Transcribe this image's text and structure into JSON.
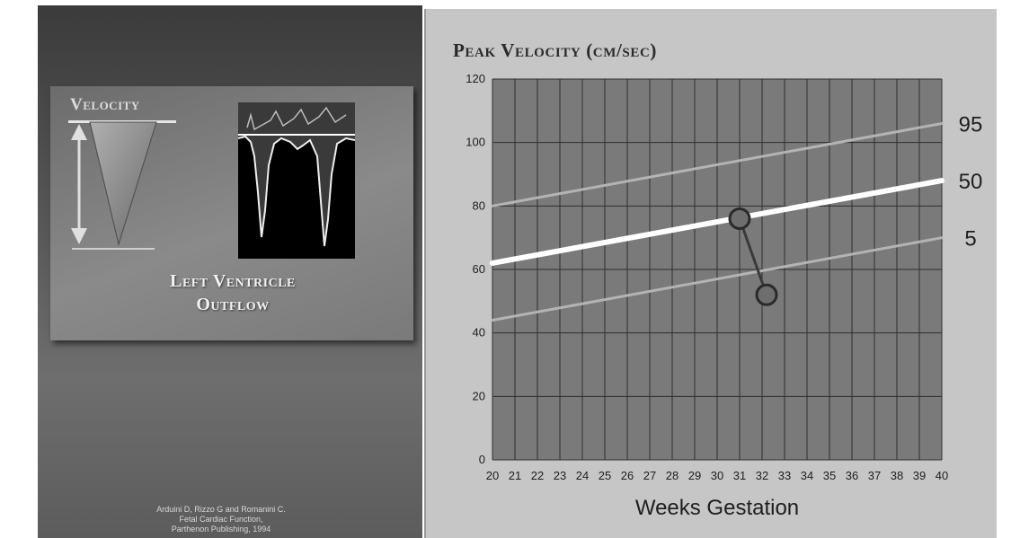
{
  "left_panel": {
    "velocity_label": "Velocity",
    "title_line1": "Left Ventricle",
    "title_line2": "Outflow",
    "citation_line1": "Arduini D, Rizzo G and Romanini C.",
    "citation_line2": "Fetal Cardiac Function,",
    "citation_line3": "Parthenon Publishing, 1994"
  },
  "chart_data": {
    "type": "line",
    "title": "Peak Velocity (cm/sec)",
    "xlabel": "Weeks Gestation",
    "ylabel": "",
    "xlim": [
      20,
      40
    ],
    "ylim": [
      0,
      120
    ],
    "x_ticks": [
      20,
      21,
      22,
      23,
      24,
      25,
      26,
      27,
      28,
      29,
      30,
      31,
      32,
      33,
      34,
      35,
      36,
      37,
      38,
      39,
      40
    ],
    "y_ticks": [
      0,
      20,
      40,
      60,
      80,
      100,
      120
    ],
    "grid": true,
    "series": [
      {
        "name": "95",
        "x": [
          20,
          40
        ],
        "y": [
          80,
          106
        ],
        "color": "#b4b4b4"
      },
      {
        "name": "50",
        "x": [
          20,
          40
        ],
        "y": [
          62,
          88
        ],
        "color": "#ffffff"
      },
      {
        "name": "5",
        "x": [
          20,
          40
        ],
        "y": [
          44,
          70
        ],
        "color": "#b4b4b4"
      }
    ],
    "points": [
      {
        "x": 31,
        "y": 76
      },
      {
        "x": 32.2,
        "y": 52
      }
    ]
  }
}
